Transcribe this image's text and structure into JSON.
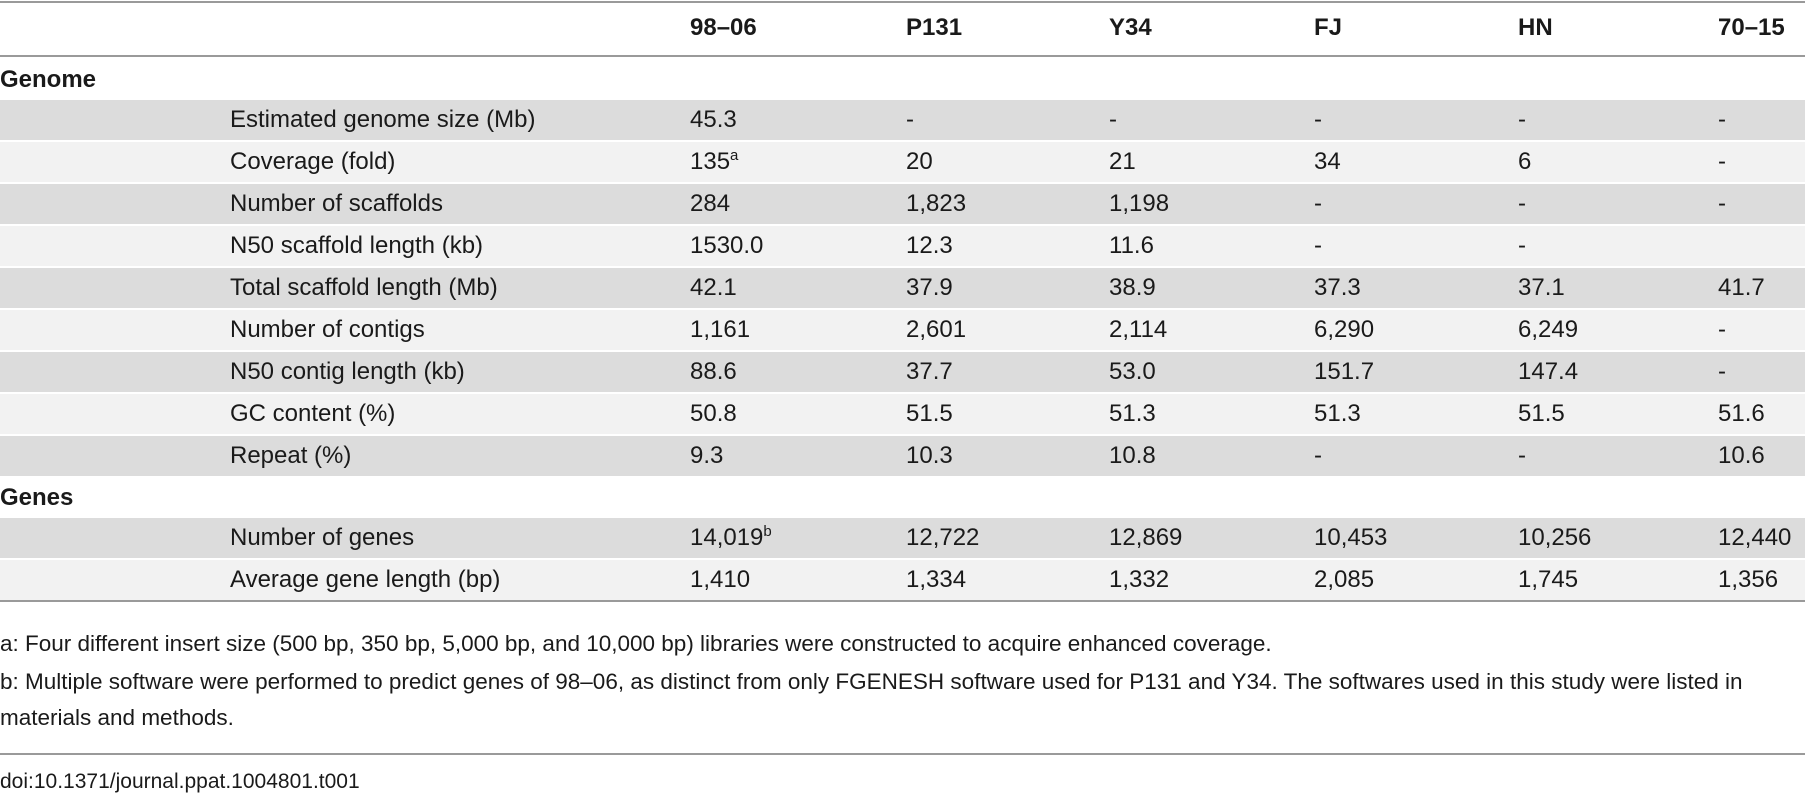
{
  "table": {
    "columns": [
      "98–06",
      "P131",
      "Y34",
      "FJ",
      "HN",
      "70–15"
    ],
    "sections": [
      {
        "label": "Genome",
        "rows": [
          {
            "label": "Estimated genome size (Mb)",
            "values": [
              "45.3",
              "-",
              "-",
              "-",
              "-",
              "-"
            ],
            "sup": ""
          },
          {
            "label": "Coverage (fold)",
            "values": [
              "135",
              "20",
              "21",
              "34",
              "6",
              "-"
            ],
            "sup": "a"
          },
          {
            "label": "Number of scaffolds",
            "values": [
              "284",
              "1,823",
              "1,198",
              "-",
              "-",
              "-"
            ],
            "sup": ""
          },
          {
            "label": "N50 scaffold length (kb)",
            "values": [
              "1530.0",
              "12.3",
              "11.6",
              "-",
              "-",
              ""
            ],
            "sup": ""
          },
          {
            "label": "Total scaffold length (Mb)",
            "values": [
              "42.1",
              "37.9",
              "38.9",
              "37.3",
              "37.1",
              "41.7"
            ],
            "sup": ""
          },
          {
            "label": "Number of contigs",
            "values": [
              "1,161",
              "2,601",
              "2,114",
              "6,290",
              "6,249",
              "-"
            ],
            "sup": ""
          },
          {
            "label": "N50 contig length (kb)",
            "values": [
              "88.6",
              "37.7",
              "53.0",
              "151.7",
              "147.4",
              "-"
            ],
            "sup": ""
          },
          {
            "label": "GC content (%)",
            "values": [
              "50.8",
              "51.5",
              "51.3",
              "51.3",
              "51.5",
              "51.6"
            ],
            "sup": ""
          },
          {
            "label": "Repeat (%)",
            "values": [
              "9.3",
              "10.3",
              "10.8",
              "-",
              "-",
              "10.6"
            ],
            "sup": ""
          }
        ]
      },
      {
        "label": "Genes",
        "rows": [
          {
            "label": "Number of genes",
            "values": [
              "14,019",
              "12,722",
              "12,869",
              "10,453",
              "10,256",
              "12,440"
            ],
            "sup": "b"
          },
          {
            "label": "Average gene length (bp)",
            "values": [
              "1,410",
              "1,334",
              "1,332",
              "2,085",
              "1,745",
              "1,356"
            ],
            "sup": ""
          }
        ]
      }
    ]
  },
  "footnotes": {
    "a": "a: Four different insert size (500 bp, 350 bp, 5,000 bp, and 10,000 bp) libraries were constructed to acquire enhanced coverage.",
    "b": "b: Multiple software were performed to predict genes of 98–06, as distinct from only FGENESH software used for P131 and Y34. The softwares used in this study were listed in materials and methods."
  },
  "doi": "doi:10.1371/journal.ppat.1004801.t001"
}
